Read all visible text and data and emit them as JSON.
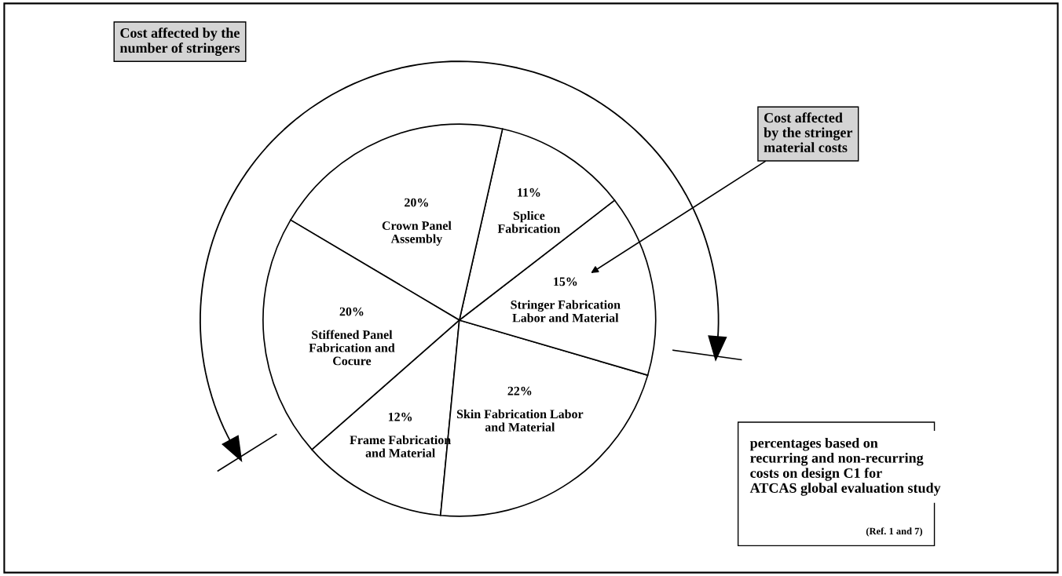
{
  "chart_data": {
    "type": "pie",
    "categories": [
      "Frame Fabrication\nand Material",
      "Skin Fabrication Labor\nand Material",
      "Stringer Fabrication\nLabor and Material",
      "Splice\nFabrication",
      "Crown Panel\nAssembly",
      "Stiffened Panel\nFabrication and\nCocure"
    ],
    "values": [
      12,
      22,
      15,
      11,
      20,
      20
    ],
    "value_labels": [
      "12%",
      "22%",
      "15%",
      "11%",
      "20%",
      "20%"
    ],
    "colors": [
      "#ffffff",
      "#ffffff",
      "#ffffff",
      "#ffffff",
      "#ffffff",
      "#ffffff"
    ],
    "annotations": [
      "Cost affected by the\nnumber of stringers",
      "Cost affected\nby the stringer\nmaterial costs",
      "percentages based on\nrecurring and non-recurring\ncosts on design C1 for\nATCAS global evaluation study",
      "(Ref. 1 and 7)"
    ]
  }
}
